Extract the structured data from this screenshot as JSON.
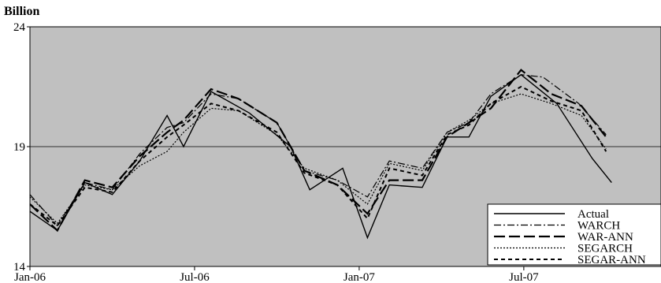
{
  "chart_data": {
    "type": "line",
    "unit_label": "Billion",
    "ylim": [
      14,
      24
    ],
    "yticks": [
      "14",
      "19",
      "24"
    ],
    "xlim": [
      0,
      23
    ],
    "xticks": [
      {
        "x": 0,
        "label": "Jan-06"
      },
      {
        "x": 6,
        "label": "Jul-06"
      },
      {
        "x": 12,
        "label": "Jan-07"
      },
      {
        "x": 18,
        "label": "Jul-07"
      }
    ],
    "grid": "horizontal line at 19",
    "background": "#c0c0c0",
    "legend_position": "bottom-right",
    "series": [
      {
        "name": "Actual",
        "style": "solid",
        "values": [
          [
            0,
            16.3
          ],
          [
            1,
            15.5
          ],
          [
            2,
            17.5
          ],
          [
            3,
            17.0
          ],
          [
            4,
            18.4
          ],
          [
            5,
            20.3
          ],
          [
            5.6,
            19.0
          ],
          [
            6.6,
            21.3
          ],
          [
            8,
            20.4
          ],
          [
            9.5,
            19.0
          ],
          [
            10.2,
            17.2
          ],
          [
            11.4,
            18.1
          ],
          [
            12.3,
            15.2
          ],
          [
            13.1,
            17.4
          ],
          [
            14.3,
            17.3
          ],
          [
            15.2,
            19.4
          ],
          [
            16,
            19.4
          ],
          [
            16.8,
            21.1
          ],
          [
            17.9,
            22.0
          ],
          [
            19.2,
            20.8
          ],
          [
            20.5,
            18.5
          ],
          [
            21.2,
            17.5
          ]
        ]
      },
      {
        "name": "WARCH",
        "style": "dashdot",
        "values": [
          [
            0,
            17.0
          ],
          [
            1,
            15.7
          ],
          [
            2,
            17.5
          ],
          [
            3,
            17.2
          ],
          [
            4,
            18.7
          ],
          [
            5,
            19.8
          ],
          [
            5.6,
            20.0
          ],
          [
            6.6,
            21.2
          ],
          [
            7.6,
            21.0
          ],
          [
            9,
            20.0
          ],
          [
            10,
            18.0
          ],
          [
            11.2,
            17.6
          ],
          [
            12.3,
            16.9
          ],
          [
            13.1,
            18.4
          ],
          [
            14.3,
            18.1
          ],
          [
            15.2,
            19.6
          ],
          [
            16,
            20.0
          ],
          [
            16.8,
            21.2
          ],
          [
            17.9,
            22.0
          ],
          [
            18.7,
            21.9
          ],
          [
            20,
            20.8
          ],
          [
            21,
            19.5
          ]
        ]
      },
      {
        "name": "WAR-ANN",
        "style": "longdash",
        "values": [
          [
            0,
            16.6
          ],
          [
            1,
            15.5
          ],
          [
            2,
            17.6
          ],
          [
            3,
            17.3
          ],
          [
            4,
            18.6
          ],
          [
            5,
            19.6
          ],
          [
            5.6,
            20.1
          ],
          [
            6.6,
            21.4
          ],
          [
            7.6,
            21.0
          ],
          [
            9,
            20.0
          ],
          [
            10,
            18.0
          ],
          [
            11.2,
            17.4
          ],
          [
            12.3,
            16.2
          ],
          [
            13.1,
            17.6
          ],
          [
            14.3,
            17.6
          ],
          [
            15.2,
            19.4
          ],
          [
            16,
            20.0
          ],
          [
            16.8,
            20.6
          ],
          [
            17.9,
            22.2
          ],
          [
            19,
            21.2
          ],
          [
            20.1,
            20.7
          ],
          [
            21,
            19.4
          ]
        ]
      },
      {
        "name": "SEGARCH",
        "style": "dotted",
        "values": [
          [
            0,
            16.9
          ],
          [
            1,
            15.8
          ],
          [
            2,
            17.4
          ],
          [
            3,
            17.2
          ],
          [
            4,
            18.2
          ],
          [
            5,
            18.8
          ],
          [
            5.6,
            19.6
          ],
          [
            6.6,
            20.6
          ],
          [
            7.6,
            20.5
          ],
          [
            9,
            19.5
          ],
          [
            10,
            18.1
          ],
          [
            11.2,
            17.6
          ],
          [
            12.3,
            16.6
          ],
          [
            13.1,
            18.3
          ],
          [
            14.3,
            18.0
          ],
          [
            15.2,
            19.6
          ],
          [
            16,
            20.1
          ],
          [
            16.8,
            20.8
          ],
          [
            17.9,
            21.2
          ],
          [
            19,
            20.8
          ],
          [
            20.1,
            20.3
          ],
          [
            21,
            18.9
          ]
        ]
      },
      {
        "name": "SEGAR-ANN",
        "style": "shortdash",
        "values": [
          [
            0,
            16.6
          ],
          [
            1,
            15.7
          ],
          [
            2,
            17.3
          ],
          [
            3,
            17.1
          ],
          [
            4,
            18.4
          ],
          [
            5,
            19.4
          ],
          [
            5.6,
            19.9
          ],
          [
            6.6,
            20.8
          ],
          [
            7.6,
            20.5
          ],
          [
            9,
            19.6
          ],
          [
            10,
            17.9
          ],
          [
            11.2,
            17.4
          ],
          [
            12.3,
            16.0
          ],
          [
            13.1,
            18.1
          ],
          [
            14.3,
            17.8
          ],
          [
            15.2,
            19.5
          ],
          [
            16,
            19.9
          ],
          [
            16.8,
            20.8
          ],
          [
            17.9,
            21.5
          ],
          [
            19,
            20.9
          ],
          [
            20.1,
            20.5
          ],
          [
            21,
            18.8
          ]
        ]
      }
    ]
  }
}
